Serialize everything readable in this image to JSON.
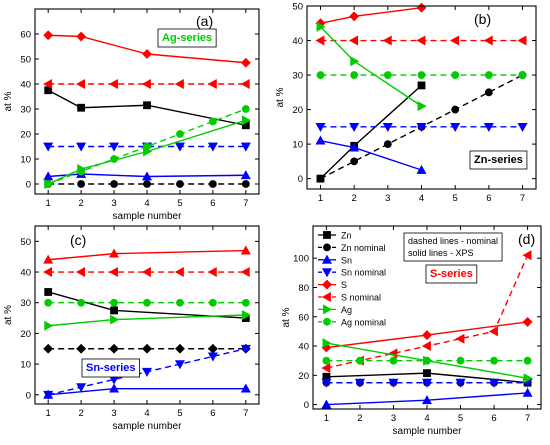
{
  "chart_data": [
    {
      "type": "line",
      "panel_label": "(a)",
      "series_label": "Ag-series",
      "series_label_color": "#00cc00",
      "series_label_boxed": true,
      "xlabel": "sample number",
      "ylabel": "at %",
      "xlim": [
        0.6,
        7.4
      ],
      "ylim": [
        -4,
        70
      ],
      "xticks": [
        1,
        2,
        3,
        4,
        5,
        6,
        7
      ],
      "yticks": [
        0,
        10,
        20,
        30,
        40,
        50,
        60
      ],
      "x_ticks_labeled": true,
      "grid": false,
      "series": [
        {
          "color": "#000000",
          "marker": "square",
          "dashed": false,
          "x": [
            1,
            2,
            4,
            7
          ],
          "values": [
            37.5,
            30.5,
            31.5,
            23.5
          ]
        },
        {
          "color": "#000000",
          "marker": "circle",
          "dashed": true,
          "x": [
            1,
            2,
            3,
            4,
            5,
            6,
            7
          ],
          "values": [
            0,
            0,
            0,
            0,
            0,
            0,
            0
          ]
        },
        {
          "color": "#0000ff",
          "marker": "triangle-up",
          "dashed": false,
          "x": [
            1,
            2,
            4,
            7
          ],
          "values": [
            3,
            4,
            3,
            3.5
          ]
        },
        {
          "color": "#0000ff",
          "marker": "triangle-down",
          "dashed": true,
          "x": [
            1,
            2,
            3,
            4,
            5,
            6,
            7
          ],
          "values": [
            15,
            15,
            15,
            15,
            15,
            15,
            15
          ]
        },
        {
          "color": "#ff0000",
          "marker": "diamond",
          "dashed": false,
          "x": [
            1,
            2,
            4,
            7
          ],
          "values": [
            59.5,
            59,
            52,
            48.5
          ]
        },
        {
          "color": "#ff0000",
          "marker": "triangle-left",
          "dashed": true,
          "x": [
            1,
            2,
            3,
            4,
            5,
            6,
            7
          ],
          "values": [
            40,
            40,
            40,
            40,
            40,
            40,
            40
          ]
        },
        {
          "color": "#00cc00",
          "marker": "triangle-right",
          "dashed": false,
          "x": [
            1,
            2,
            4,
            7
          ],
          "values": [
            0,
            6,
            13,
            25.5
          ]
        },
        {
          "color": "#00cc00",
          "marker": "circle",
          "dashed": true,
          "x": [
            1,
            2,
            3,
            4,
            5,
            6,
            7
          ],
          "values": [
            0,
            5,
            10,
            15,
            20,
            25,
            30
          ]
        }
      ]
    },
    {
      "type": "line",
      "panel_label": "(b)",
      "series_label": "Zn-series",
      "series_label_color": "#000000",
      "series_label_boxed": true,
      "xlabel": "",
      "ylabel": "at %",
      "xlim": [
        0.6,
        7.4
      ],
      "ylim": [
        -3,
        50
      ],
      "xticks": [
        1,
        2,
        3,
        4,
        5,
        6,
        7
      ],
      "yticks": [
        0,
        10,
        20,
        30,
        40,
        50
      ],
      "x_ticks_labeled": true,
      "grid": false,
      "series": [
        {
          "color": "#000000",
          "marker": "square",
          "dashed": false,
          "x": [
            1,
            2,
            4
          ],
          "values": [
            0,
            9.5,
            27
          ]
        },
        {
          "color": "#000000",
          "marker": "circle",
          "dashed": true,
          "x": [
            1,
            2,
            3,
            4,
            5,
            6,
            7
          ],
          "values": [
            0,
            5,
            10,
            15,
            20,
            25,
            30
          ]
        },
        {
          "color": "#0000ff",
          "marker": "triangle-up",
          "dashed": false,
          "x": [
            1,
            2,
            4
          ],
          "values": [
            11,
            9,
            2.5
          ]
        },
        {
          "color": "#0000ff",
          "marker": "triangle-down",
          "dashed": true,
          "x": [
            1,
            2,
            3,
            4,
            5,
            6,
            7
          ],
          "values": [
            15,
            15,
            15,
            15,
            15,
            15,
            15
          ]
        },
        {
          "color": "#ff0000",
          "marker": "diamond",
          "dashed": false,
          "x": [
            1,
            2,
            4
          ],
          "values": [
            45,
            47,
            49.5
          ]
        },
        {
          "color": "#ff0000",
          "marker": "triangle-left",
          "dashed": true,
          "x": [
            1,
            2,
            3,
            4,
            5,
            6,
            7
          ],
          "values": [
            40,
            40,
            40,
            40,
            40,
            40,
            40
          ]
        },
        {
          "color": "#00cc00",
          "marker": "triangle-right",
          "dashed": false,
          "x": [
            1,
            2,
            4
          ],
          "values": [
            44,
            34,
            21
          ]
        },
        {
          "color": "#00cc00",
          "marker": "circle",
          "dashed": true,
          "x": [
            1,
            2,
            3,
            4,
            5,
            6,
            7
          ],
          "values": [
            30,
            30,
            30,
            30,
            30,
            30,
            30
          ]
        }
      ]
    },
    {
      "type": "line",
      "panel_label": "(c)",
      "series_label": "Sn-series",
      "series_label_color": "#0000ff",
      "series_label_boxed": true,
      "xlabel": "sample number",
      "ylabel": "at %",
      "xlim": [
        0.6,
        7.4
      ],
      "ylim": [
        -3,
        55
      ],
      "xticks": [
        1,
        2,
        3,
        4,
        5,
        6,
        7
      ],
      "yticks": [
        0,
        10,
        20,
        30,
        40,
        50
      ],
      "x_ticks_labeled": true,
      "grid": false,
      "series": [
        {
          "color": "#000000",
          "marker": "square",
          "dashed": false,
          "x": [
            1,
            3,
            7
          ],
          "values": [
            33.5,
            27.5,
            25
          ]
        },
        {
          "color": "#000000",
          "marker": "diamond",
          "dashed": true,
          "x": [
            1,
            2,
            3,
            4,
            5,
            6,
            7
          ],
          "values": [
            15,
            15,
            15,
            15,
            15,
            15,
            15
          ]
        },
        {
          "color": "#0000ff",
          "marker": "triangle-up",
          "dashed": false,
          "x": [
            1,
            3,
            7
          ],
          "values": [
            0,
            2,
            2
          ]
        },
        {
          "color": "#0000ff",
          "marker": "triangle-down",
          "dashed": true,
          "x": [
            1,
            2,
            3,
            4,
            5,
            6,
            7
          ],
          "values": [
            0,
            2.5,
            5,
            7.5,
            10,
            12.5,
            15
          ]
        },
        {
          "color": "#ff0000",
          "marker": "triangle-up",
          "dashed": false,
          "x": [
            1,
            3,
            7
          ],
          "values": [
            44,
            46,
            47
          ]
        },
        {
          "color": "#ff0000",
          "marker": "triangle-left",
          "dashed": true,
          "x": [
            1,
            2,
            3,
            4,
            5,
            6,
            7
          ],
          "values": [
            40,
            40,
            40,
            40,
            40,
            40,
            40
          ]
        },
        {
          "color": "#00cc00",
          "marker": "triangle-right",
          "dashed": false,
          "x": [
            1,
            3,
            7
          ],
          "values": [
            22.5,
            24.5,
            26
          ]
        },
        {
          "color": "#00cc00",
          "marker": "circle",
          "dashed": true,
          "x": [
            1,
            2,
            3,
            4,
            5,
            6,
            7
          ],
          "values": [
            30,
            30,
            30,
            30,
            30,
            30,
            30
          ]
        }
      ]
    },
    {
      "type": "line",
      "panel_label": "(d)",
      "series_label": "S-series",
      "series_label_color": "#ff0000",
      "series_label_boxed": true,
      "xlabel": "sample number",
      "ylabel": "at %",
      "xlim": [
        0.6,
        7.4
      ],
      "ylim": [
        -3,
        122
      ],
      "xticks": [
        1,
        2,
        3,
        4,
        5,
        6,
        7
      ],
      "yticks": [
        0,
        20,
        40,
        60,
        80,
        100
      ],
      "x_ticks_labeled": true,
      "grid": false,
      "legend_position": "top-left",
      "note_lines": [
        "dashed lines - nominal",
        "solid lines - XPS"
      ],
      "legend": [
        {
          "name": "Zn",
          "color": "#000000",
          "marker": "square",
          "dashed": false
        },
        {
          "name": "Zn nominal",
          "color": "#000000",
          "marker": "circle",
          "dashed": true
        },
        {
          "name": "Sn",
          "color": "#0000ff",
          "marker": "triangle-up",
          "dashed": false
        },
        {
          "name": "Sn nominal",
          "color": "#0000ff",
          "marker": "triangle-down",
          "dashed": true
        },
        {
          "name": "S",
          "color": "#ff0000",
          "marker": "diamond",
          "dashed": false
        },
        {
          "name": "S nominal",
          "color": "#ff0000",
          "marker": "triangle-left",
          "dashed": true
        },
        {
          "name": "Ag",
          "color": "#00cc00",
          "marker": "triangle-right",
          "dashed": false
        },
        {
          "name": "Ag nominal",
          "color": "#00cc00",
          "marker": "circle",
          "dashed": true
        }
      ],
      "series": [
        {
          "color": "#000000",
          "marker": "square",
          "dashed": false,
          "x": [
            1,
            4,
            7
          ],
          "values": [
            19,
            21.5,
            15
          ]
        },
        {
          "color": "#000000",
          "marker": "circle",
          "dashed": true,
          "x": [
            1,
            2,
            3,
            4,
            5,
            6,
            7
          ],
          "values": [
            15,
            15,
            15,
            15,
            15,
            15,
            15
          ]
        },
        {
          "color": "#0000ff",
          "marker": "triangle-up",
          "dashed": false,
          "x": [
            1,
            4,
            7
          ],
          "values": [
            0,
            3,
            8
          ]
        },
        {
          "color": "#0000ff",
          "marker": "triangle-down",
          "dashed": true,
          "x": [
            1,
            2,
            3,
            4,
            5,
            6,
            7
          ],
          "values": [
            15,
            15,
            15,
            15,
            15,
            15,
            15
          ]
        },
        {
          "color": "#ff0000",
          "marker": "diamond",
          "dashed": false,
          "x": [
            1,
            4,
            7
          ],
          "values": [
            39,
            47.5,
            56.5
          ]
        },
        {
          "color": "#ff0000",
          "marker": "triangle-left",
          "dashed": true,
          "x": [
            1,
            2,
            3,
            4,
            5,
            6,
            7
          ],
          "values": [
            25,
            30,
            35,
            40,
            45,
            50,
            102
          ]
        },
        {
          "color": "#00cc00",
          "marker": "triangle-right",
          "dashed": false,
          "x": [
            1,
            4,
            7
          ],
          "values": [
            42,
            30,
            18
          ]
        },
        {
          "color": "#00cc00",
          "marker": "circle",
          "dashed": true,
          "x": [
            1,
            2,
            3,
            4,
            5,
            6,
            7
          ],
          "values": [
            30,
            30,
            30,
            30,
            30,
            30,
            30
          ]
        }
      ]
    }
  ]
}
